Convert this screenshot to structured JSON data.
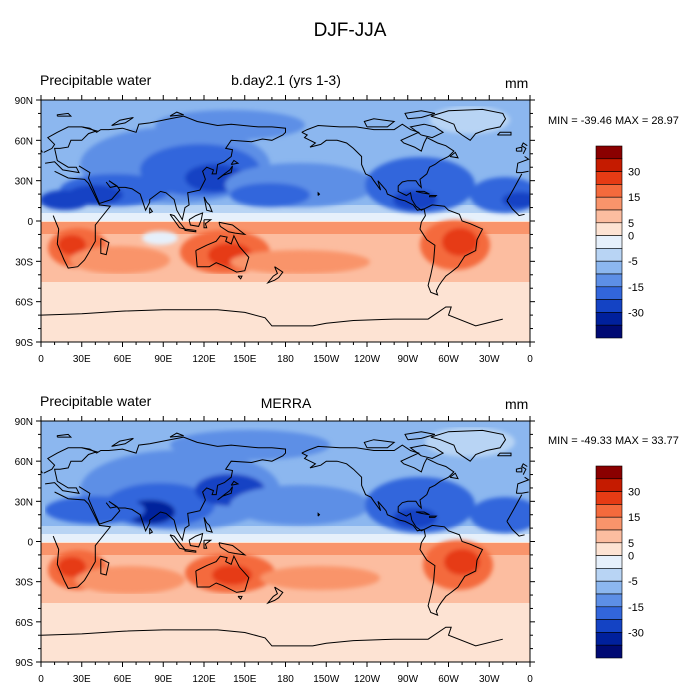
{
  "title": "DJF-JJA",
  "panels": [
    {
      "left_label": "Precipitable water",
      "center_label": "b.day2.1 (yrs 1-3)",
      "units": "mm",
      "minmax": "MIN = -39.46 MAX =  28.97"
    },
    {
      "left_label": "Precipitable water",
      "center_label": "MERRA",
      "units": "mm",
      "minmax": "MIN = -49.33 MAX =  33.77"
    }
  ],
  "lat_ticks": [
    "90N",
    "60N",
    "30N",
    "0",
    "30S",
    "60S",
    "90S"
  ],
  "lon_ticks": [
    "0",
    "30E",
    "60E",
    "90E",
    "120E",
    "150E",
    "180",
    "150W",
    "120W",
    "90W",
    "60W",
    "30W",
    "0"
  ],
  "colorbar": {
    "labels": [
      "30",
      "15",
      "5",
      "0",
      "-5",
      "-15",
      "-30"
    ],
    "colors": [
      "#8a0000",
      "#c51b00",
      "#e63b14",
      "#f46a3c",
      "#f9946b",
      "#fcbda0",
      "#fde3d3",
      "#e6f0fb",
      "#b8d4f4",
      "#8cb7ef",
      "#5d8fe6",
      "#3266dc",
      "#1443c4",
      "#00209c",
      "#000a73"
    ]
  }
}
